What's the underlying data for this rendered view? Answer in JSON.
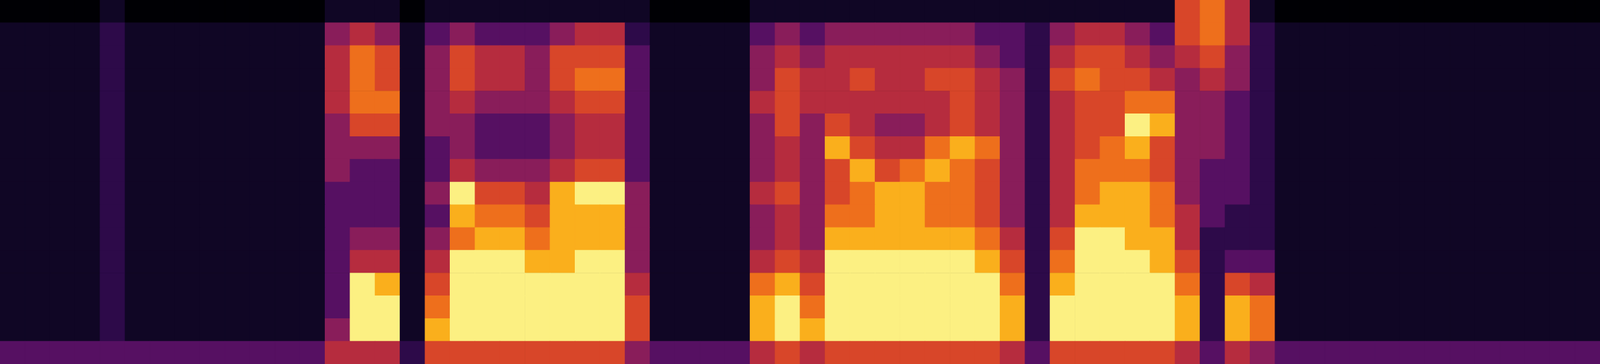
{
  "chart_data": {
    "type": "heatmap",
    "tick_labels": false,
    "grid": false,
    "cells": [
      [
        3,
        1,
        1,
        1,
        1,
        1,
        1,
        1,
        1,
        1,
        1,
        1,
        1,
        1,
        1,
        0
      ],
      [
        3,
        1,
        1,
        1,
        1,
        1,
        1,
        1,
        1,
        1,
        1,
        1,
        1,
        1,
        1,
        0
      ],
      [
        3,
        1,
        1,
        1,
        1,
        1,
        1,
        1,
        1,
        1,
        1,
        1,
        1,
        1,
        1,
        0
      ],
      [
        3,
        1,
        1,
        1,
        1,
        1,
        1,
        1,
        1,
        1,
        1,
        1,
        1,
        1,
        1,
        0
      ],
      [
        3,
        2,
        2,
        2,
        2,
        2,
        2,
        2,
        2,
        2,
        2,
        2,
        2,
        2,
        2,
        1
      ],
      [
        3,
        1,
        1,
        1,
        1,
        1,
        1,
        1,
        1,
        1,
        1,
        1,
        1,
        1,
        1,
        0
      ],
      [
        3,
        1,
        1,
        1,
        1,
        1,
        1,
        1,
        1,
        1,
        1,
        1,
        1,
        1,
        1,
        0
      ],
      [
        3,
        1,
        1,
        1,
        1,
        1,
        1,
        1,
        1,
        1,
        1,
        1,
        1,
        1,
        1,
        0
      ],
      [
        3,
        1,
        1,
        1,
        1,
        1,
        1,
        1,
        1,
        1,
        1,
        1,
        1,
        1,
        1,
        0
      ],
      [
        3,
        1,
        1,
        1,
        1,
        1,
        1,
        1,
        1,
        1,
        1,
        1,
        1,
        1,
        1,
        0
      ],
      [
        3,
        1,
        1,
        1,
        1,
        1,
        1,
        1,
        1,
        1,
        1,
        1,
        1,
        1,
        1,
        0
      ],
      [
        3,
        1,
        1,
        1,
        1,
        1,
        1,
        1,
        1,
        1,
        1,
        1,
        1,
        1,
        1,
        0
      ],
      [
        3,
        1,
        1,
        1,
        1,
        1,
        1,
        1,
        1,
        1,
        1,
        1,
        1,
        1,
        1,
        0
      ],
      [
        5,
        4,
        3,
        3,
        3,
        3,
        3,
        3,
        4,
        4,
        4,
        5,
        5,
        5,
        4,
        1
      ],
      [
        5,
        9,
        9,
        9,
        5,
        4,
        3,
        3,
        3,
        4,
        6,
        7,
        7,
        7,
        5,
        1
      ],
      [
        5,
        9,
        9,
        8,
        5,
        4,
        3,
        3,
        3,
        4,
        6,
        7,
        6,
        6,
        4,
        1
      ],
      [
        2,
        1,
        1,
        1,
        1,
        1,
        1,
        1,
        1,
        1,
        1,
        1,
        1,
        1,
        1,
        0
      ],
      [
        6,
        8,
        7,
        6,
        5,
        4,
        3,
        4,
        3,
        3,
        4,
        4,
        4,
        4,
        3,
        1
      ],
      [
        6,
        9,
        9,
        9,
        9,
        7,
        8,
        9,
        5,
        4,
        4,
        5,
        6,
        6,
        4,
        1
      ],
      [
        6,
        9,
        9,
        9,
        9,
        8,
        7,
        6,
        4,
        3,
        3,
        4,
        5,
        5,
        3,
        1
      ],
      [
        6,
        9,
        9,
        9,
        9,
        8,
        7,
        6,
        4,
        3,
        3,
        4,
        5,
        5,
        3,
        1
      ],
      [
        6,
        9,
        9,
        9,
        8,
        7,
        6,
        5,
        4,
        3,
        3,
        4,
        4,
        4,
        3,
        1
      ],
      [
        6,
        9,
        9,
        9,
        8,
        8,
        8,
        8,
        5,
        4,
        4,
        5,
        6,
        6,
        4,
        1
      ],
      [
        6,
        9,
        9,
        9,
        9,
        8,
        8,
        9,
        6,
        5,
        5,
        6,
        7,
        6,
        5,
        1
      ],
      [
        6,
        9,
        9,
        9,
        9,
        8,
        8,
        9,
        6,
        5,
        5,
        6,
        7,
        6,
        5,
        1
      ],
      [
        4,
        6,
        6,
        5,
        4,
        4,
        4,
        4,
        3,
        3,
        3,
        3,
        3,
        3,
        2,
        1
      ],
      [
        3,
        1,
        1,
        1,
        1,
        1,
        1,
        1,
        1,
        1,
        1,
        1,
        1,
        1,
        1,
        0
      ],
      [
        3,
        1,
        1,
        1,
        1,
        1,
        1,
        1,
        1,
        1,
        1,
        1,
        1,
        1,
        1,
        0
      ],
      [
        3,
        1,
        1,
        1,
        1,
        1,
        1,
        1,
        1,
        1,
        1,
        1,
        1,
        1,
        1,
        0
      ],
      [
        3,
        1,
        1,
        1,
        1,
        1,
        1,
        1,
        1,
        1,
        1,
        1,
        1,
        1,
        1,
        0
      ],
      [
        5,
        8,
        8,
        7,
        5,
        4,
        4,
        5,
        4,
        4,
        4,
        5,
        4,
        4,
        3,
        1
      ],
      [
        6,
        9,
        9,
        8,
        6,
        5,
        5,
        6,
        5,
        5,
        6,
        6,
        6,
        5,
        4,
        1
      ],
      [
        5,
        8,
        7,
        6,
        5,
        4,
        4,
        4,
        4,
        4,
        4,
        5,
        5,
        4,
        3,
        1
      ],
      [
        6,
        9,
        9,
        9,
        9,
        8,
        7,
        6,
        6,
        8,
        6,
        5,
        5,
        5,
        4,
        1
      ],
      [
        6,
        9,
        9,
        9,
        9,
        8,
        7,
        7,
        8,
        6,
        5,
        5,
        6,
        5,
        4,
        1
      ],
      [
        6,
        9,
        9,
        9,
        9,
        8,
        8,
        8,
        6,
        5,
        4,
        5,
        5,
        5,
        4,
        1
      ],
      [
        6,
        9,
        9,
        9,
        9,
        8,
        8,
        8,
        7,
        5,
        4,
        5,
        5,
        5,
        4,
        1
      ],
      [
        6,
        9,
        9,
        9,
        9,
        8,
        7,
        7,
        8,
        7,
        5,
        5,
        6,
        5,
        4,
        1
      ],
      [
        6,
        9,
        9,
        9,
        9,
        8,
        7,
        7,
        7,
        8,
        6,
        6,
        6,
        5,
        4,
        1
      ],
      [
        6,
        9,
        9,
        9,
        8,
        7,
        6,
        6,
        6,
        7,
        5,
        5,
        5,
        4,
        3,
        1
      ],
      [
        5,
        8,
        8,
        7,
        6,
        5,
        4,
        4,
        4,
        4,
        4,
        4,
        4,
        3,
        3,
        1
      ],
      [
        3,
        2,
        2,
        2,
        2,
        2,
        2,
        2,
        2,
        2,
        2,
        2,
        2,
        2,
        2,
        1
      ],
      [
        6,
        9,
        9,
        8,
        7,
        6,
        5,
        5,
        5,
        5,
        5,
        5,
        6,
        5,
        4,
        1
      ],
      [
        6,
        9,
        9,
        9,
        9,
        9,
        8,
        7,
        7,
        6,
        6,
        6,
        7,
        6,
        5,
        1
      ],
      [
        6,
        9,
        9,
        9,
        9,
        9,
        8,
        8,
        7,
        7,
        6,
        6,
        6,
        6,
        5,
        1
      ],
      [
        6,
        9,
        9,
        9,
        9,
        8,
        8,
        8,
        7,
        8,
        9,
        7,
        6,
        5,
        4,
        1
      ],
      [
        6,
        9,
        9,
        9,
        8,
        8,
        7,
        7,
        6,
        6,
        8,
        7,
        5,
        4,
        3,
        1
      ],
      [
        5,
        8,
        8,
        7,
        6,
        5,
        5,
        4,
        4,
        4,
        4,
        4,
        4,
        5,
        6,
        6
      ],
      [
        3,
        2,
        2,
        2,
        2,
        2,
        3,
        3,
        3,
        4,
        4,
        4,
        5,
        6,
        7,
        7
      ],
      [
        5,
        8,
        8,
        6,
        3,
        2,
        2,
        3,
        3,
        3,
        3,
        3,
        4,
        4,
        5,
        5
      ],
      [
        4,
        7,
        7,
        5,
        3,
        2,
        2,
        2,
        2,
        2,
        2,
        2,
        2,
        2,
        2,
        1
      ],
      [
        3,
        1,
        1,
        1,
        1,
        1,
        1,
        1,
        1,
        1,
        1,
        1,
        1,
        1,
        1,
        0
      ],
      [
        3,
        1,
        1,
        1,
        1,
        1,
        1,
        1,
        1,
        1,
        1,
        1,
        1,
        1,
        1,
        0
      ],
      [
        3,
        1,
        1,
        1,
        1,
        1,
        1,
        1,
        1,
        1,
        1,
        1,
        1,
        1,
        1,
        0
      ],
      [
        3,
        1,
        1,
        1,
        1,
        1,
        1,
        1,
        1,
        1,
        1,
        1,
        1,
        1,
        1,
        0
      ],
      [
        3,
        1,
        1,
        1,
        1,
        1,
        1,
        1,
        1,
        1,
        1,
        1,
        1,
        1,
        1,
        0
      ],
      [
        3,
        1,
        1,
        1,
        1,
        1,
        1,
        1,
        1,
        1,
        1,
        1,
        1,
        1,
        1,
        0
      ],
      [
        3,
        1,
        1,
        1,
        1,
        1,
        1,
        1,
        1,
        1,
        1,
        1,
        1,
        1,
        1,
        0
      ],
      [
        3,
        1,
        1,
        1,
        1,
        1,
        1,
        1,
        1,
        1,
        1,
        1,
        1,
        1,
        1,
        0
      ],
      [
        3,
        1,
        1,
        1,
        1,
        1,
        1,
        1,
        1,
        1,
        1,
        1,
        1,
        1,
        1,
        0
      ],
      [
        3,
        1,
        1,
        1,
        1,
        1,
        1,
        1,
        1,
        1,
        1,
        1,
        1,
        1,
        1,
        0
      ],
      [
        3,
        1,
        1,
        1,
        1,
        1,
        1,
        1,
        1,
        1,
        1,
        1,
        1,
        1,
        1,
        0
      ],
      [
        3,
        1,
        1,
        1,
        1,
        1,
        1,
        1,
        1,
        1,
        1,
        1,
        1,
        1,
        1,
        0
      ],
      [
        3,
        1,
        1,
        1,
        1,
        1,
        1,
        1,
        1,
        1,
        1,
        1,
        1,
        1,
        1,
        0
      ]
    ]
  }
}
